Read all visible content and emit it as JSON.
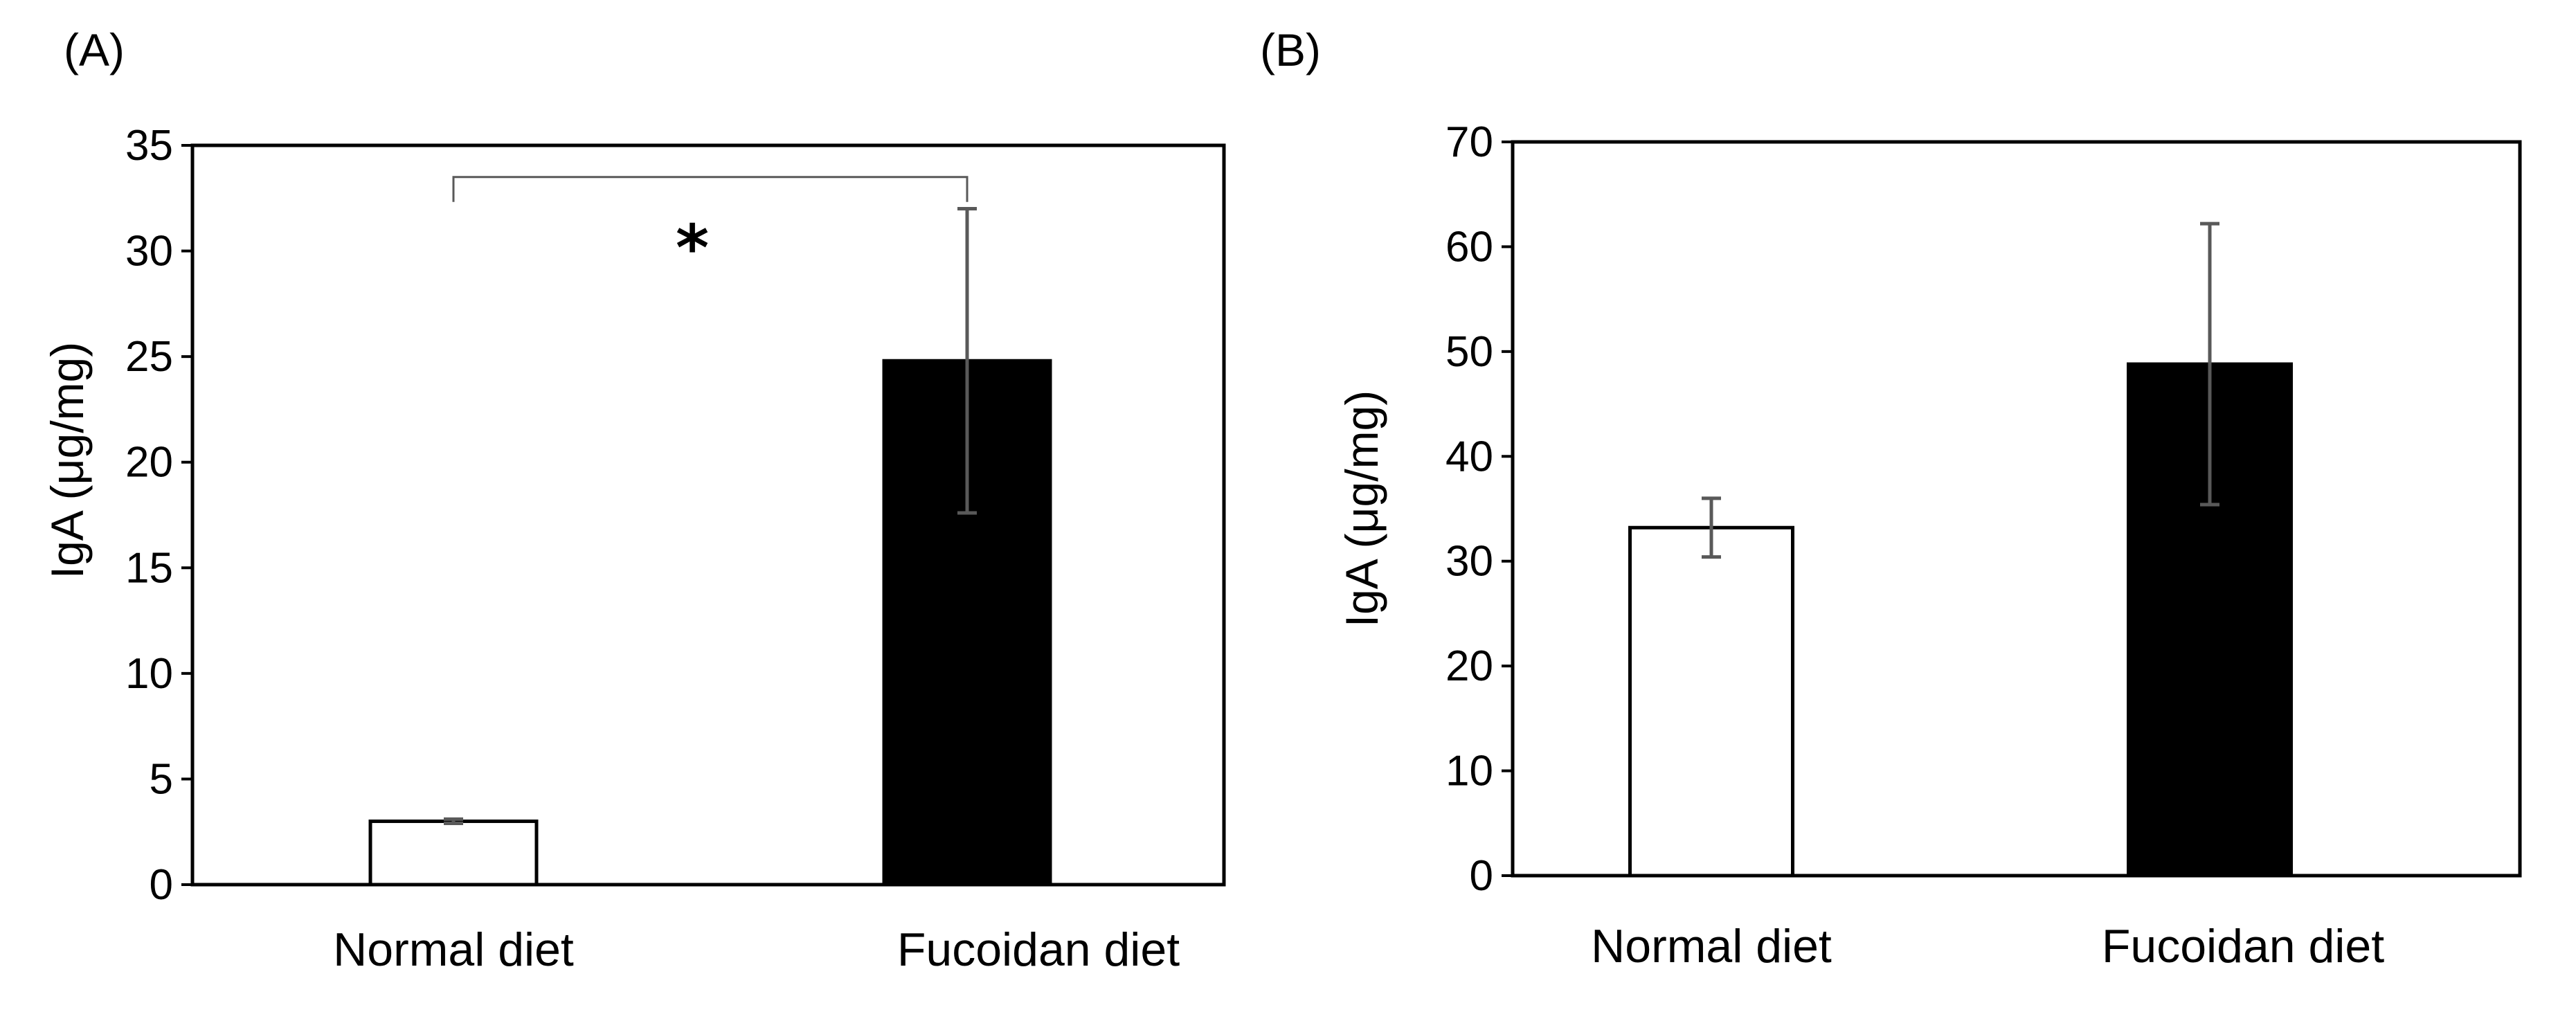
{
  "chart_data": [
    {
      "type": "bar",
      "panel_label": "(A)",
      "ylabel": "IgA (μg/mg)",
      "xlabel": "",
      "categories": [
        "Normal diet",
        "Fucoidan diet"
      ],
      "values": [
        3.0,
        24.8
      ],
      "errors": [
        0.1,
        7.2
      ],
      "colors": [
        "#ffffff",
        "#000000"
      ],
      "ylim": [
        0,
        35
      ],
      "yticks": [
        0,
        5,
        10,
        15,
        20,
        25,
        30,
        35
      ],
      "significance": {
        "between": [
          0,
          1
        ],
        "label": "*",
        "y": 33.5
      },
      "grid": false
    },
    {
      "type": "bar",
      "panel_label": "(B)",
      "ylabel": "IgA (μg/mg)",
      "xlabel": "",
      "categories": [
        "Normal diet",
        "Fucoidan diet"
      ],
      "values": [
        33.2,
        48.8
      ],
      "errors": [
        2.8,
        13.4
      ],
      "colors": [
        "#ffffff",
        "#000000"
      ],
      "ylim": [
        0,
        70
      ],
      "yticks": [
        0,
        10,
        20,
        30,
        40,
        50,
        60,
        70
      ],
      "grid": false
    }
  ]
}
